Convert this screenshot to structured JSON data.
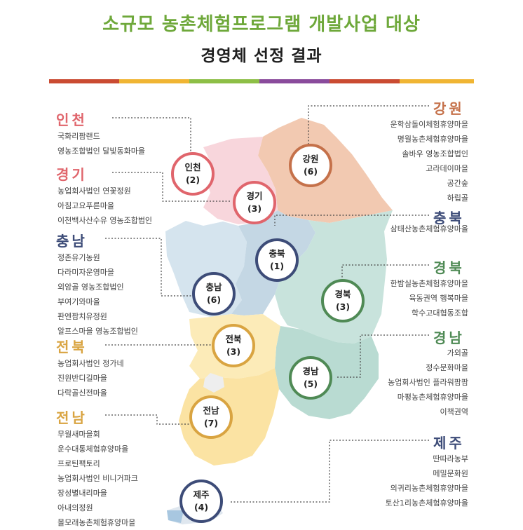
{
  "title": {
    "line1": "소규모 농촌체험프로그램 개발사업 대상",
    "line2": "경영체 선정 결과"
  },
  "colors": {
    "title_green": "#6ea83a",
    "stripe": [
      "#ca4b32",
      "#f0b533",
      "#8dbf46",
      "#8a4b9c",
      "#ca4b32",
      "#f0b533"
    ],
    "incheon": "#e0656c",
    "gyeonggi": "#e0656c",
    "gangwon": "#c5714a",
    "chungbuk": "#3d4c78",
    "chungnam": "#3d4c78",
    "gyeongbuk": "#4f8a55",
    "gyeongnam": "#4f8a55",
    "jeonbuk": "#d9a441",
    "jeonnam": "#d9a441",
    "jeju": "#3d4c78"
  },
  "regions": {
    "incheon": {
      "name": "인천",
      "badge": "인천",
      "count": "(2)",
      "items": [
        "국화리팜랜드",
        "영농조합법인 달빛동화마을"
      ]
    },
    "gyeonggi": {
      "name": "경기",
      "badge": "경기",
      "count": "(3)",
      "items": [
        "농업회사법인 연꽃정원",
        "아침고요푸른마을",
        "이천백사산수유 영농조합법인"
      ]
    },
    "chungnam": {
      "name": "충남",
      "badge": "충남",
      "count": "(6)",
      "items": [
        "정존유기농원",
        "다라미자운영마을",
        "외암골 영농조합법인",
        "부여기와마을",
        "판엔팜치유정원",
        "알프스마을 영농조합법인"
      ]
    },
    "jeonbuk": {
      "name": "전북",
      "badge": "전북",
      "count": "(3)",
      "items": [
        "농업회사법인 정가네",
        "진원반디길마을",
        "다락골신전마을"
      ]
    },
    "jeonnam": {
      "name": "전남",
      "badge": "전남",
      "count": "(7)",
      "items": [
        "무월새마을회",
        "운수대통체험휴양마을",
        "프로틴팩토리",
        "농업회사법인 비니거파크",
        "장성별내리마을",
        "아내의정원",
        "몰모래농촌체험휴양마을"
      ]
    },
    "gangwon": {
      "name": "강원",
      "badge": "강원",
      "count": "(6)",
      "items": [
        "운학삼돌이체험휴양마을",
        "명월농촌체험휴양마을",
        "솔바우 영농조합법인",
        "고라데이마을",
        "공간숲",
        "하립골"
      ]
    },
    "chungbuk": {
      "name": "충북",
      "badge": "충북",
      "count": "(1)",
      "items": [
        "삼태산농촌체험휴양마을"
      ]
    },
    "gyeongbuk": {
      "name": "경북",
      "badge": "경북",
      "count": "(3)",
      "items": [
        "한밤실농촌체험휴양마을",
        "육동권역 행복마을",
        "학수고대협동조합"
      ]
    },
    "gyeongnam": {
      "name": "경남",
      "badge": "경남",
      "count": "(5)",
      "items": [
        "가외골",
        "정수문화마을",
        "농업회사법인 플라워팜팜",
        "마평농촌체험휴양마을",
        "이책권역"
      ]
    },
    "jeju": {
      "name": "제주",
      "badge": "제주",
      "count": "(4)",
      "items": [
        "딴따라농부",
        "메밀문화원",
        "의귀리농촌체험휴양마을",
        "토산1리농촌체험휴양마을"
      ]
    }
  }
}
